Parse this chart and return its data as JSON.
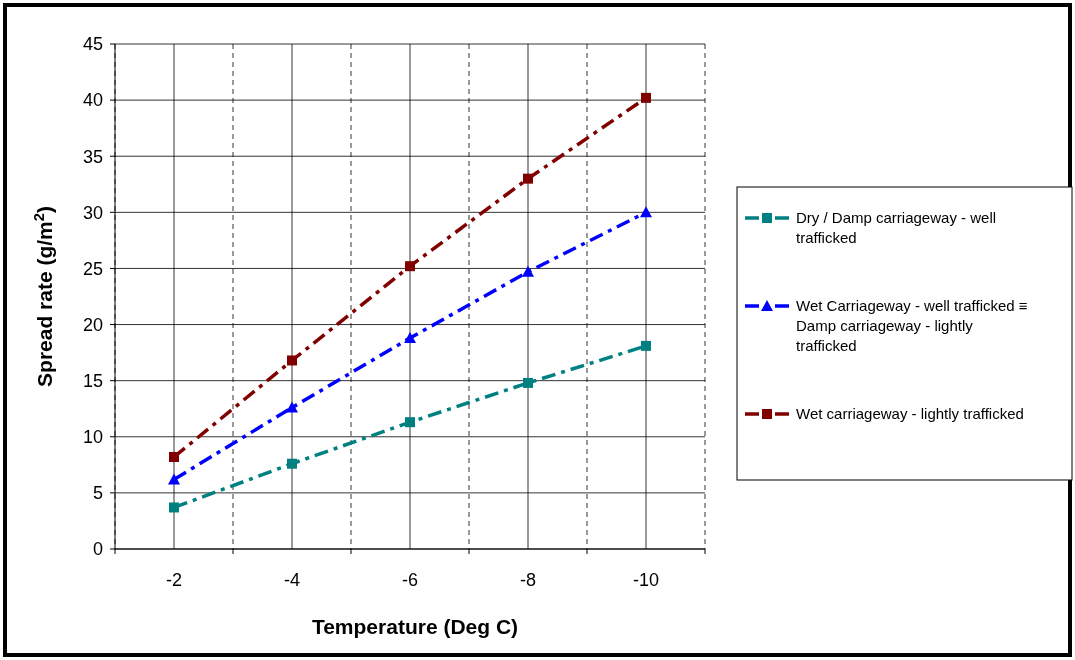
{
  "chart_data": {
    "type": "line",
    "xlabel": "Temperature (Deg C)",
    "ylabel": "Spread rate (g/m$^{2}$)",
    "categories": [
      "-2",
      "-4",
      "-6",
      "-8",
      "-10"
    ],
    "ylim": [
      0,
      45
    ],
    "yticks": [
      0,
      5,
      10,
      15,
      20,
      25,
      30,
      35,
      40,
      45
    ],
    "grid": true,
    "legend": "right",
    "line_style": "dashed",
    "series": [
      {
        "name": "Dry / Damp carriageway - well trafficked",
        "color": "#008080",
        "marker": "square",
        "values": [
          3.7,
          7.6,
          11.3,
          14.8,
          18.1
        ]
      },
      {
        "name": "Wet Carriageway - well trafficked ≡ Damp carriageway - lightly trafficked",
        "color": "#0000ff",
        "marker": "triangle",
        "values": [
          6.2,
          12.6,
          18.8,
          24.7,
          30.0
        ]
      },
      {
        "name": "Wet carriageway - lightly trafficked",
        "color": "#800000",
        "marker": "square",
        "values": [
          8.2,
          16.8,
          25.2,
          33.0,
          40.2
        ]
      }
    ]
  }
}
